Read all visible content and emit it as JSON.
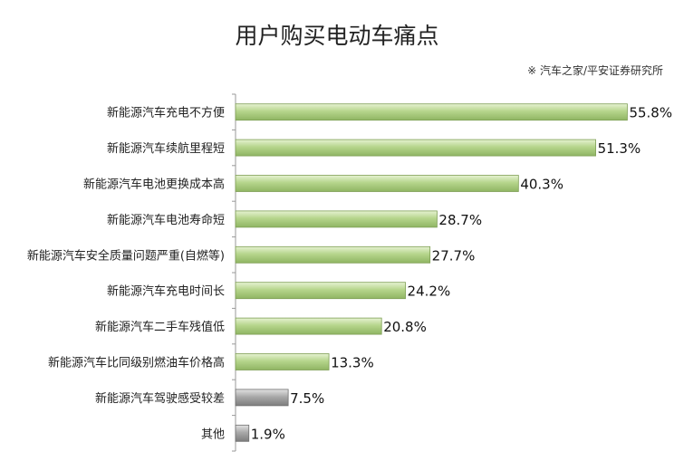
{
  "chart_data": {
    "type": "bar",
    "orientation": "horizontal",
    "title": "用户购买电动车痛点",
    "source": "※ 汽车之家/平安证券研究所",
    "categories": [
      "新能源汽车充电不方便",
      "新能源汽车续航里程短",
      "新能源汽车电池更换成本高",
      "新能源汽车电池寿命短",
      "新能源汽车安全质量问题严重(自燃等)",
      "新能源汽车充电时间长",
      "新能源汽车二手车残值低",
      "新能源汽车比同级别燃油车价格高",
      "新能源汽车驾驶感受较差",
      "其他"
    ],
    "values": [
      55.8,
      51.3,
      40.3,
      28.7,
      27.7,
      24.2,
      20.8,
      13.3,
      7.5,
      1.9
    ],
    "value_labels": [
      "55.8%",
      "51.3%",
      "40.3%",
      "28.7%",
      "27.7%",
      "24.2%",
      "20.8%",
      "13.3%",
      "7.5%",
      "1.9%"
    ],
    "bar_colors": [
      "green",
      "green",
      "green",
      "green",
      "green",
      "green",
      "green",
      "green",
      "gray",
      "gray"
    ],
    "colors": {
      "green_fill": "#b6d58c",
      "green_edge": "#7f9f55",
      "gray_fill": "#a9a9a9",
      "gray_edge": "#6f6f6f",
      "axis": "#999999"
    },
    "xlim": [
      0,
      60
    ],
    "grid": false,
    "legend": "none"
  }
}
